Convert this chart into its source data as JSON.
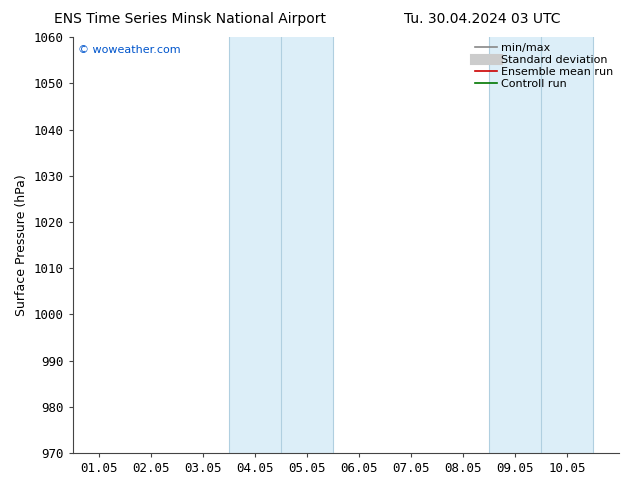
{
  "title_left": "ENS Time Series Minsk National Airport",
  "title_right": "Tu. 30.04.2024 03 UTC",
  "ylabel": "Surface Pressure (hPa)",
  "ylim": [
    970,
    1060
  ],
  "yticks": [
    970,
    980,
    990,
    1000,
    1010,
    1020,
    1030,
    1040,
    1050,
    1060
  ],
  "xlim": [
    0.0,
    10.5
  ],
  "xtick_labels": [
    "01.05",
    "02.05",
    "03.05",
    "04.05",
    "05.05",
    "06.05",
    "07.05",
    "08.05",
    "09.05",
    "10.05"
  ],
  "xtick_positions": [
    0.5,
    1.5,
    2.5,
    3.5,
    4.5,
    5.5,
    6.5,
    7.5,
    8.5,
    9.5
  ],
  "shaded_bands": [
    {
      "x_start": 3.0,
      "x_end": 5.0,
      "divider": 4.0
    },
    {
      "x_start": 8.0,
      "x_end": 10.0,
      "divider": 9.0
    }
  ],
  "band_color": "#dceef8",
  "band_edge_color": "#b0cfe0",
  "divider_color": "#b0cfe0",
  "watermark": "© woweather.com",
  "watermark_color": "#0055cc",
  "legend_items": [
    {
      "label": "min/max",
      "color": "#888888",
      "lw": 1.2,
      "style": "-"
    },
    {
      "label": "Standard deviation",
      "color": "#cccccc",
      "lw": 6,
      "style": "-"
    },
    {
      "label": "Ensemble mean run",
      "color": "#cc0000",
      "lw": 1.2,
      "style": "-"
    },
    {
      "label": "Controll run",
      "color": "#007700",
      "lw": 1.2,
      "style": "-"
    }
  ],
  "bg_color": "#ffffff",
  "title_fontsize": 10,
  "axis_label_fontsize": 9,
  "tick_fontsize": 9,
  "legend_fontsize": 8,
  "watermark_fontsize": 8
}
